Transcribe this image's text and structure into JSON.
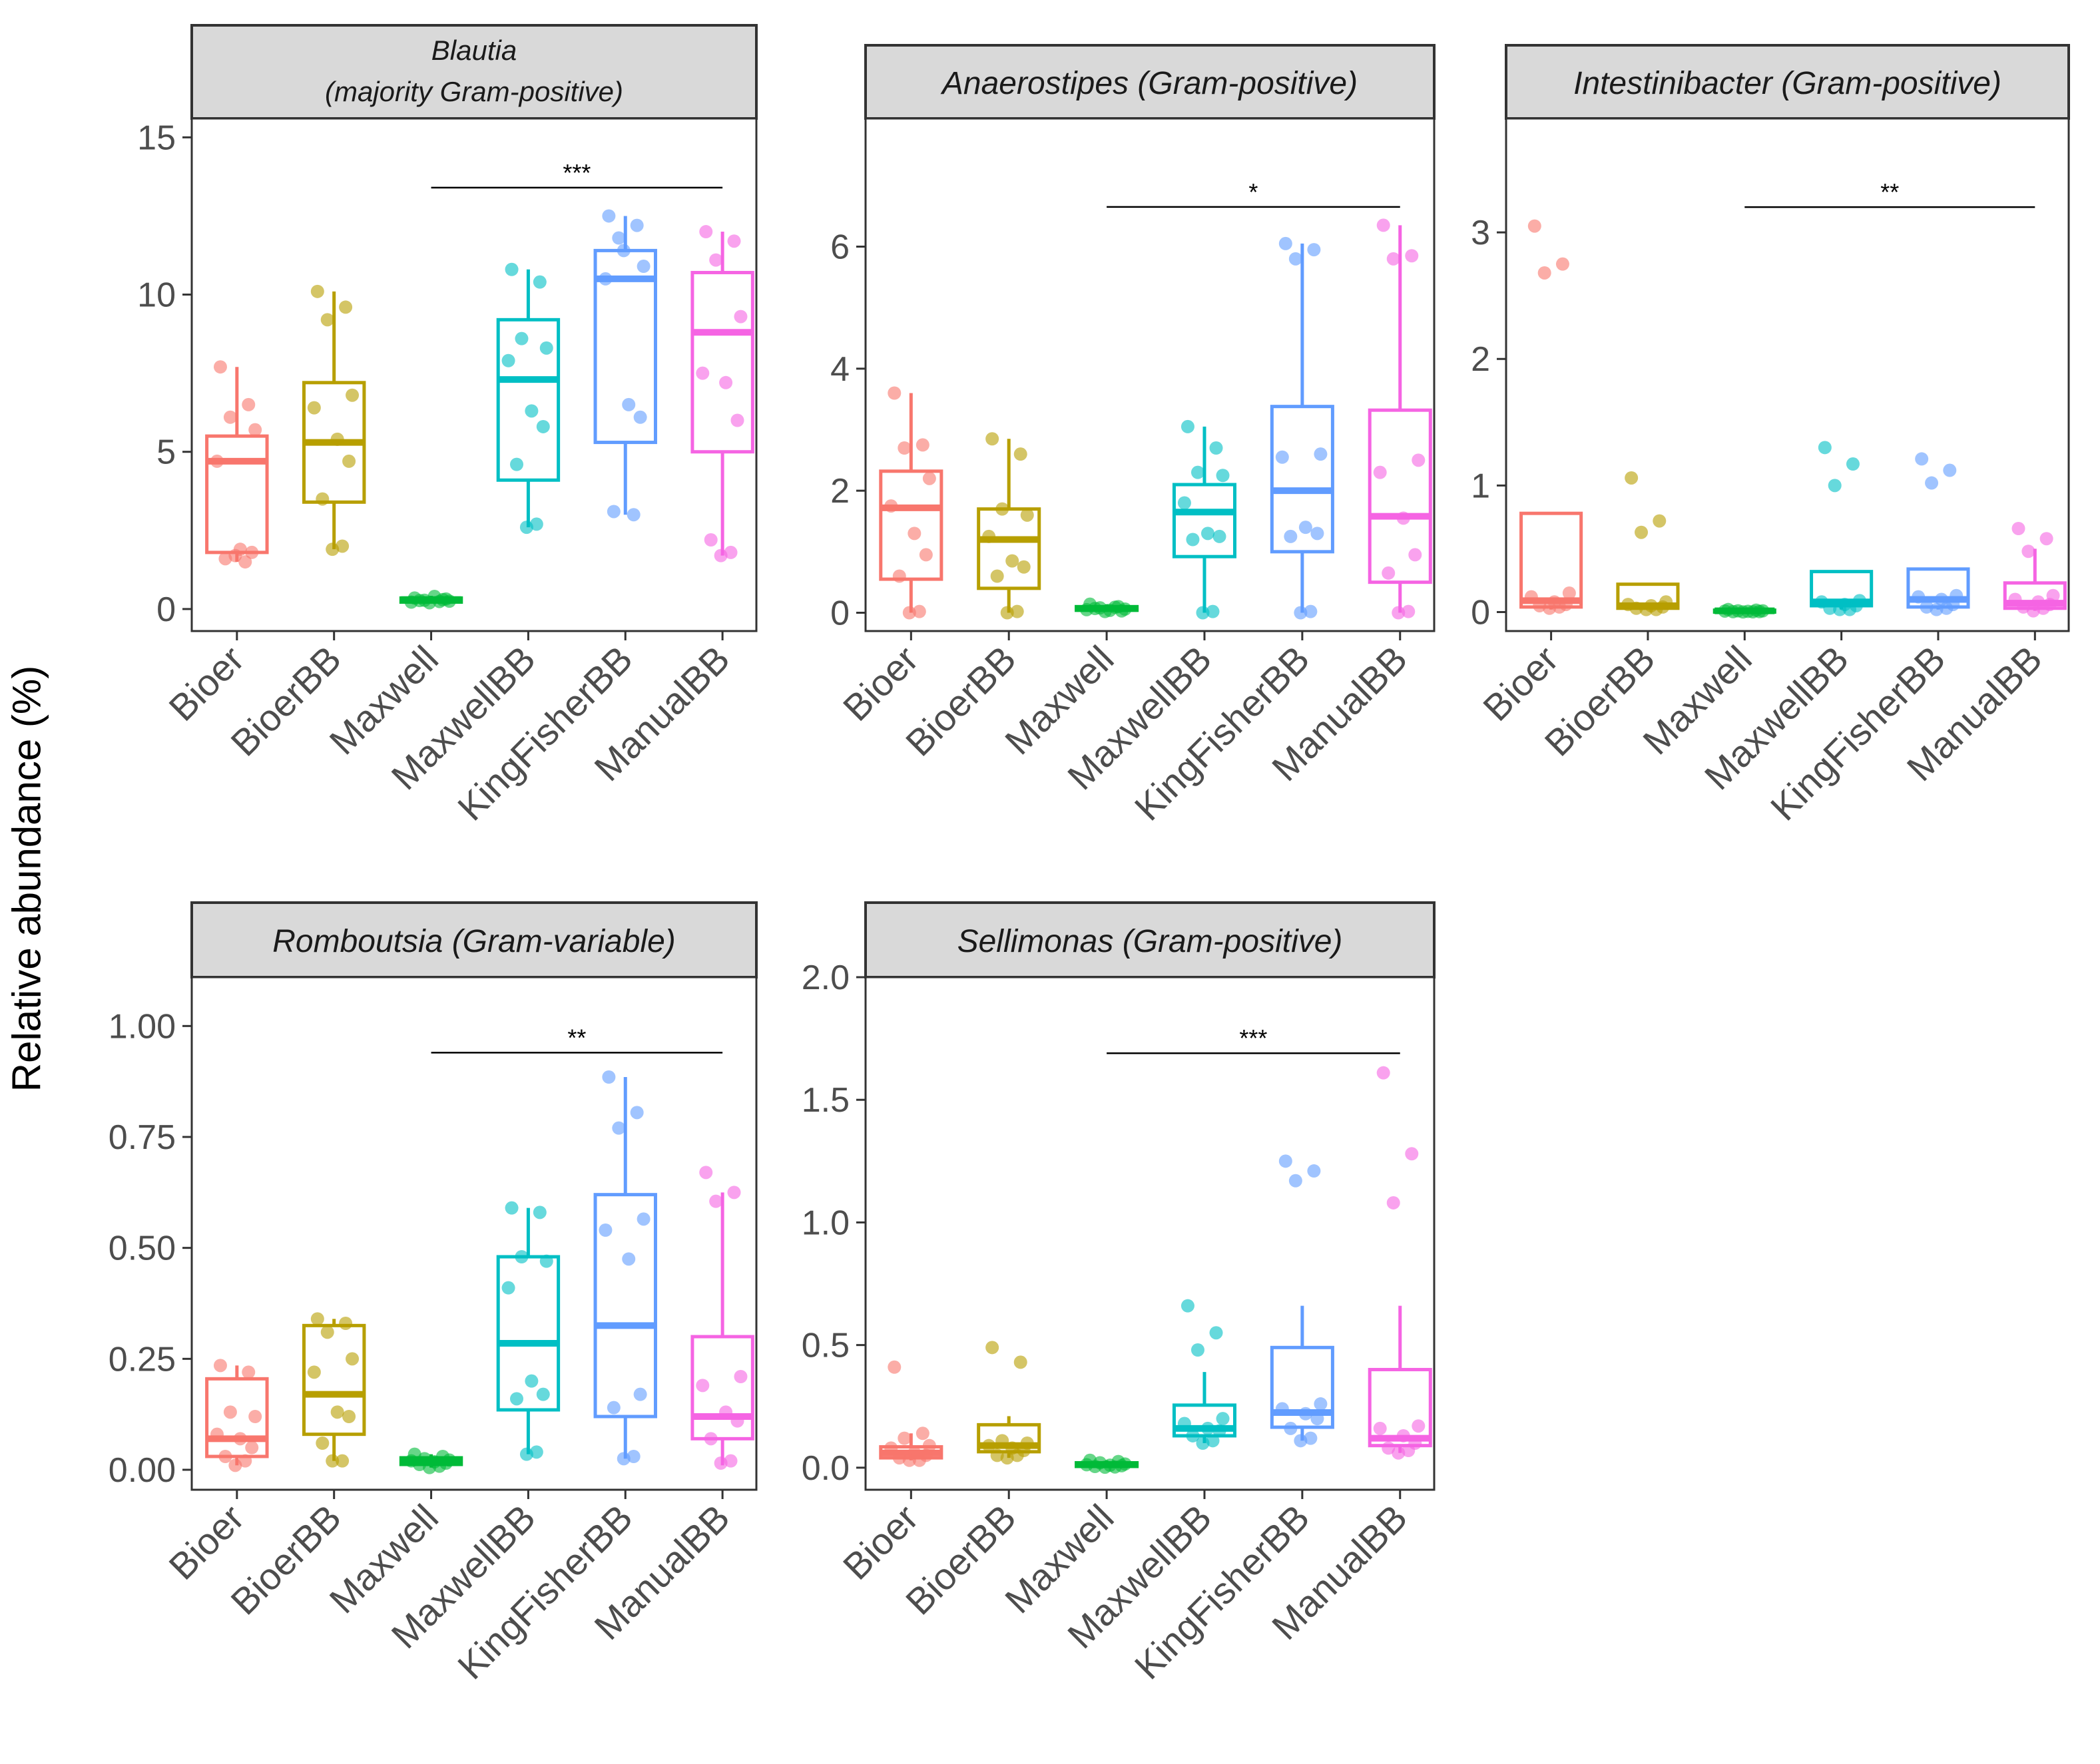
{
  "figure": {
    "ylabel": "Relative abundance (%)"
  },
  "chart_data": [
    {
      "type": "box",
      "title_lines": [
        "Blautia",
        "(majority Gram-positive)"
      ],
      "ylabel": "Relative abundance (%)",
      "categories": [
        "Bioer",
        "BioerBB",
        "Maxwell",
        "MaxwellBB",
        "KingFisherBB",
        "ManualBB"
      ],
      "colors": [
        "#F8766D",
        "#B79F00",
        "#00BA38",
        "#00BFC4",
        "#619CFF",
        "#F564E3"
      ],
      "ylim": [
        -0.7,
        15.6
      ],
      "yticks": [
        0,
        5,
        10,
        15
      ],
      "ytick_labels": [
        "0",
        "5",
        "10",
        "15"
      ],
      "boxes": [
        {
          "q1": 1.8,
          "median": 4.7,
          "q3": 5.5,
          "whisker_low": 1.5,
          "whisker_high": 7.7
        },
        {
          "q1": 3.4,
          "median": 5.3,
          "q3": 7.2,
          "whisker_low": 1.9,
          "whisker_high": 10.1
        },
        {
          "q1": 0.22,
          "median": 0.3,
          "q3": 0.35,
          "whisker_low": 0.18,
          "whisker_high": 0.42
        },
        {
          "q1": 4.1,
          "median": 7.3,
          "q3": 9.2,
          "whisker_low": 2.6,
          "whisker_high": 10.8
        },
        {
          "q1": 5.3,
          "median": 10.5,
          "q3": 11.4,
          "whisker_low": 3.0,
          "whisker_high": 12.5
        },
        {
          "q1": 5.0,
          "median": 8.8,
          "q3": 10.7,
          "whisker_low": 1.7,
          "whisker_high": 12.0
        }
      ],
      "points": [
        [
          7.7,
          6.5,
          6.1,
          5.7,
          4.7,
          1.9,
          1.8,
          1.6,
          1.5,
          1.7
        ],
        [
          10.1,
          9.6,
          9.2,
          6.8,
          6.4,
          5.4,
          4.7,
          3.5,
          2.0,
          1.9
        ],
        [
          0.35,
          0.3,
          0.28,
          0.25,
          0.22,
          0.4,
          0.32,
          0.27,
          0.24,
          0.2
        ],
        [
          10.8,
          10.4,
          8.6,
          8.3,
          7.9,
          6.3,
          5.8,
          4.6,
          2.7,
          2.6
        ],
        [
          12.5,
          12.2,
          11.8,
          10.9,
          10.5,
          6.5,
          6.1,
          3.1,
          3.0,
          11.4
        ],
        [
          12.0,
          11.7,
          11.1,
          9.3,
          7.5,
          7.2,
          6.0,
          2.2,
          1.8,
          1.7
        ]
      ],
      "significance": {
        "label": "***",
        "from": "Maxwell",
        "to": "ManualBB",
        "y": 13.4
      }
    },
    {
      "type": "box",
      "title_lines": [
        "Anaerostipes (Gram-positive)"
      ],
      "categories": [
        "Bioer",
        "BioerBB",
        "Maxwell",
        "MaxwellBB",
        "KingFisherBB",
        "ManualBB"
      ],
      "colors": [
        "#F8766D",
        "#B79F00",
        "#00BA38",
        "#00BFC4",
        "#619CFF",
        "#F564E3"
      ],
      "ylim": [
        -0.3,
        8.1
      ],
      "yticks": [
        0,
        2,
        4,
        6
      ],
      "ytick_labels": [
        "0",
        "2",
        "4",
        "6"
      ],
      "boxes": [
        {
          "q1": 0.55,
          "median": 1.72,
          "q3": 2.32,
          "whisker_low": 0.0,
          "whisker_high": 3.6
        },
        {
          "q1": 0.4,
          "median": 1.2,
          "q3": 1.7,
          "whisker_low": 0.0,
          "whisker_high": 2.85
        },
        {
          "q1": 0.04,
          "median": 0.07,
          "q3": 0.1,
          "whisker_low": 0.02,
          "whisker_high": 0.14
        },
        {
          "q1": 0.92,
          "median": 1.65,
          "q3": 2.1,
          "whisker_low": 0.0,
          "whisker_high": 3.05
        },
        {
          "q1": 1.0,
          "median": 2.0,
          "q3": 3.38,
          "whisker_low": 0.0,
          "whisker_high": 6.05
        },
        {
          "q1": 0.5,
          "median": 1.58,
          "q3": 3.32,
          "whisker_low": 0.0,
          "whisker_high": 6.35
        }
      ],
      "points": [
        [
          3.6,
          2.75,
          2.7,
          2.2,
          1.75,
          1.3,
          0.95,
          0.6,
          0.02,
          0.0
        ],
        [
          2.85,
          2.6,
          1.7,
          1.6,
          1.25,
          0.85,
          0.75,
          0.6,
          0.02,
          0.0
        ],
        [
          0.14,
          0.1,
          0.08,
          0.06,
          0.05,
          0.04,
          0.03,
          0.07,
          0.09,
          0.02
        ],
        [
          3.05,
          2.7,
          2.3,
          2.25,
          1.8,
          1.3,
          1.25,
          1.2,
          0.02,
          0.0
        ],
        [
          6.05,
          5.95,
          5.8,
          2.6,
          2.55,
          1.4,
          1.3,
          1.25,
          0.02,
          0.0
        ],
        [
          6.35,
          5.85,
          5.8,
          2.5,
          2.3,
          1.55,
          0.95,
          0.65,
          0.02,
          0.0
        ]
      ],
      "significance": {
        "label": "*",
        "from": "Maxwell",
        "to": "ManualBB",
        "y": 6.65
      }
    },
    {
      "type": "box",
      "title_lines": [
        "Intestinibacter (Gram-positive)"
      ],
      "categories": [
        "Bioer",
        "BioerBB",
        "Maxwell",
        "MaxwellBB",
        "KingFisherBB",
        "ManualBB"
      ],
      "colors": [
        "#F8766D",
        "#B79F00",
        "#00BA38",
        "#00BFC4",
        "#619CFF",
        "#F564E3"
      ],
      "ylim": [
        -0.15,
        3.9
      ],
      "yticks": [
        0,
        1,
        2,
        3
      ],
      "ytick_labels": [
        "0",
        "1",
        "2",
        "3"
      ],
      "boxes": [
        {
          "q1": 0.04,
          "median": 0.09,
          "q3": 0.78,
          "whisker_low": 0.02,
          "whisker_high": 0.78
        },
        {
          "q1": 0.03,
          "median": 0.05,
          "q3": 0.22,
          "whisker_low": 0.02,
          "whisker_high": 0.22
        },
        {
          "q1": 0.0,
          "median": 0.01,
          "q3": 0.015,
          "whisker_low": 0.0,
          "whisker_high": 0.02
        },
        {
          "q1": 0.05,
          "median": 0.08,
          "q3": 0.32,
          "whisker_low": 0.02,
          "whisker_high": 0.32
        },
        {
          "q1": 0.04,
          "median": 0.1,
          "q3": 0.34,
          "whisker_low": 0.02,
          "whisker_high": 0.34
        },
        {
          "q1": 0.03,
          "median": 0.07,
          "q3": 0.23,
          "whisker_low": 0.01,
          "whisker_high": 0.5
        }
      ],
      "points": [
        [
          3.05,
          2.75,
          2.68,
          0.15,
          0.12,
          0.08,
          0.06,
          0.05,
          0.04,
          0.03
        ],
        [
          1.06,
          0.72,
          0.63,
          0.08,
          0.06,
          0.05,
          0.04,
          0.03,
          0.02,
          0.02
        ],
        [
          0.02,
          0.015,
          0.01,
          0.01,
          0.008,
          0.006,
          0.004,
          0.003,
          0.002,
          0.001
        ],
        [
          1.3,
          1.17,
          1.0,
          0.09,
          0.08,
          0.06,
          0.05,
          0.03,
          0.02,
          0.02
        ],
        [
          1.21,
          1.12,
          1.02,
          0.13,
          0.12,
          0.1,
          0.06,
          0.04,
          0.03,
          0.02
        ],
        [
          0.66,
          0.58,
          0.48,
          0.13,
          0.1,
          0.08,
          0.06,
          0.04,
          0.03,
          0.01
        ]
      ],
      "significance": {
        "label": "**",
        "from": "Maxwell",
        "to": "ManualBB",
        "y": 3.2
      }
    },
    {
      "type": "box",
      "title_lines": [
        "Romboutsia (Gram-variable)"
      ],
      "categories": [
        "Bioer",
        "BioerBB",
        "Maxwell",
        "MaxwellBB",
        "KingFisherBB",
        "ManualBB"
      ],
      "colors": [
        "#F8766D",
        "#B79F00",
        "#00BA38",
        "#00BFC4",
        "#619CFF",
        "#F564E3"
      ],
      "ylim": [
        -0.045,
        1.11
      ],
      "yticks": [
        0,
        0.25,
        0.5,
        0.75,
        1.0
      ],
      "ytick_labels": [
        "0.00",
        "0.25",
        "0.50",
        "0.75",
        "1.00"
      ],
      "boxes": [
        {
          "q1": 0.03,
          "median": 0.07,
          "q3": 0.205,
          "whisker_low": 0.01,
          "whisker_high": 0.235
        },
        {
          "q1": 0.08,
          "median": 0.17,
          "q3": 0.325,
          "whisker_low": 0.02,
          "whisker_high": 0.34
        },
        {
          "q1": 0.012,
          "median": 0.02,
          "q3": 0.027,
          "whisker_low": 0.005,
          "whisker_high": 0.035
        },
        {
          "q1": 0.135,
          "median": 0.285,
          "q3": 0.48,
          "whisker_low": 0.035,
          "whisker_high": 0.59
        },
        {
          "q1": 0.12,
          "median": 0.325,
          "q3": 0.62,
          "whisker_low": 0.025,
          "whisker_high": 0.885
        },
        {
          "q1": 0.07,
          "median": 0.12,
          "q3": 0.3,
          "whisker_low": 0.01,
          "whisker_high": 0.625
        }
      ],
      "points": [
        [
          0.235,
          0.22,
          0.13,
          0.12,
          0.08,
          0.07,
          0.05,
          0.03,
          0.02,
          0.01
        ],
        [
          0.34,
          0.33,
          0.31,
          0.25,
          0.22,
          0.13,
          0.12,
          0.06,
          0.02,
          0.02
        ],
        [
          0.035,
          0.03,
          0.025,
          0.022,
          0.02,
          0.018,
          0.015,
          0.012,
          0.008,
          0.005
        ],
        [
          0.59,
          0.58,
          0.48,
          0.47,
          0.41,
          0.2,
          0.17,
          0.16,
          0.04,
          0.035
        ],
        [
          0.885,
          0.805,
          0.77,
          0.565,
          0.54,
          0.475,
          0.17,
          0.14,
          0.03,
          0.025
        ],
        [
          0.67,
          0.625,
          0.605,
          0.21,
          0.19,
          0.13,
          0.11,
          0.07,
          0.02,
          0.015
        ]
      ],
      "significance": {
        "label": "**",
        "from": "Maxwell",
        "to": "ManualBB",
        "y": 0.94
      }
    },
    {
      "type": "box",
      "title_lines": [
        "Sellimonas (Gram-positive)"
      ],
      "categories": [
        "Bioer",
        "BioerBB",
        "Maxwell",
        "MaxwellBB",
        "KingFisherBB",
        "ManualBB"
      ],
      "colors": [
        "#F8766D",
        "#B79F00",
        "#00BA38",
        "#00BFC4",
        "#619CFF",
        "#F564E3"
      ],
      "ylim": [
        -0.09,
        2.0
      ],
      "yticks": [
        0,
        0.5,
        1.0,
        1.5,
        2.0
      ],
      "ytick_labels": [
        "0.0",
        "0.5",
        "1.0",
        "1.5",
        "2.0"
      ],
      "boxes": [
        {
          "q1": 0.04,
          "median": 0.06,
          "q3": 0.085,
          "whisker_low": 0.03,
          "whisker_high": 0.14
        },
        {
          "q1": 0.065,
          "median": 0.09,
          "q3": 0.175,
          "whisker_low": 0.04,
          "whisker_high": 0.21
        },
        {
          "q1": 0.005,
          "median": 0.012,
          "q3": 0.02,
          "whisker_low": 0.0,
          "whisker_high": 0.03
        },
        {
          "q1": 0.13,
          "median": 0.16,
          "q3": 0.255,
          "whisker_low": 0.1,
          "whisker_high": 0.39
        },
        {
          "q1": 0.165,
          "median": 0.225,
          "q3": 0.49,
          "whisker_low": 0.11,
          "whisker_high": 0.66
        },
        {
          "q1": 0.09,
          "median": 0.12,
          "q3": 0.4,
          "whisker_low": 0.06,
          "whisker_high": 0.66
        }
      ],
      "points": [
        [
          0.41,
          0.14,
          0.12,
          0.09,
          0.08,
          0.06,
          0.05,
          0.04,
          0.03,
          0.03
        ],
        [
          0.49,
          0.43,
          0.11,
          0.1,
          0.09,
          0.08,
          0.07,
          0.05,
          0.05,
          0.04
        ],
        [
          0.03,
          0.025,
          0.02,
          0.015,
          0.012,
          0.01,
          0.008,
          0.005,
          0.003,
          0.002
        ],
        [
          0.66,
          0.55,
          0.48,
          0.2,
          0.18,
          0.16,
          0.15,
          0.13,
          0.11,
          0.1
        ],
        [
          1.25,
          1.21,
          1.17,
          0.26,
          0.24,
          0.22,
          0.2,
          0.16,
          0.12,
          0.11
        ],
        [
          1.61,
          1.28,
          1.08,
          0.17,
          0.16,
          0.13,
          0.1,
          0.08,
          0.07,
          0.06
        ]
      ],
      "significance": {
        "label": "***",
        "from": "Maxwell",
        "to": "ManualBB",
        "y": 1.69
      }
    }
  ]
}
